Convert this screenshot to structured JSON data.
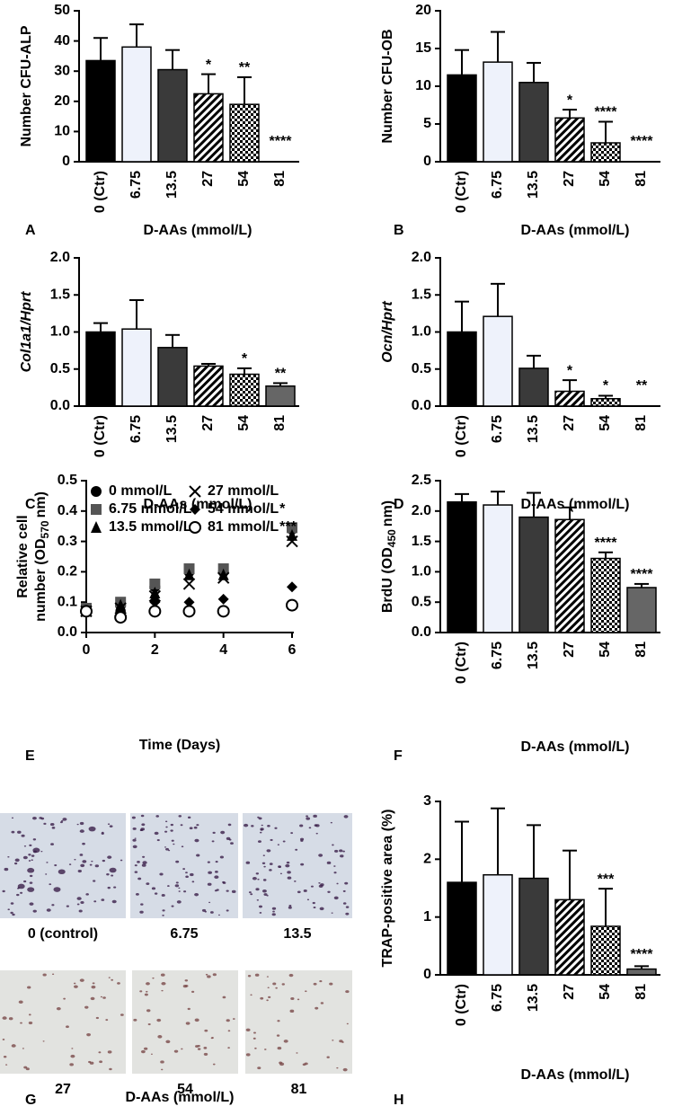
{
  "chart_data": [
    {
      "panel": "A",
      "type": "bar",
      "ylabel": "Number CFU-ALP",
      "xlabel": "D-AAs (mmol/L)",
      "categories": [
        "0 (Ctr)",
        "6.75",
        "13.5",
        "27",
        "54",
        "81"
      ],
      "values": [
        33.5,
        38,
        30.5,
        22.5,
        19,
        0
      ],
      "errors": [
        7.5,
        7.5,
        6.5,
        6.5,
        9,
        null
      ],
      "annotations": [
        null,
        null,
        null,
        "*",
        "**",
        "****"
      ],
      "fills": [
        "#000000",
        "#eef2fb",
        "#3a3a3a",
        "hatch",
        "check",
        "#666666"
      ],
      "ylim": [
        0,
        50
      ],
      "yticks": [
        0,
        10,
        20,
        30,
        40,
        50
      ]
    },
    {
      "panel": "B",
      "type": "bar",
      "ylabel": "Number CFU-OB",
      "xlabel": "D-AAs (mmol/L)",
      "categories": [
        "0 (Ctr)",
        "6.75",
        "13.5",
        "27",
        "54",
        "81"
      ],
      "values": [
        11.5,
        13.2,
        10.5,
        5.8,
        2.5,
        0
      ],
      "errors": [
        3.3,
        4,
        2.6,
        1.1,
        2.8,
        null
      ],
      "annotations": [
        null,
        null,
        null,
        "*",
        "****",
        "****"
      ],
      "fills": [
        "#000000",
        "#eef2fb",
        "#3a3a3a",
        "hatch",
        "check",
        "#666666"
      ],
      "ylim": [
        0,
        20
      ],
      "yticks": [
        0,
        5,
        10,
        15,
        20
      ]
    },
    {
      "panel": "C",
      "type": "bar",
      "ylabel": "Col1a1/Hprt",
      "ylabel_italic": true,
      "xlabel": "D-AAs (mmol/L)",
      "categories": [
        "0 (Ctr)",
        "6.75",
        "13.5",
        "27",
        "54",
        "81"
      ],
      "values": [
        1.0,
        1.04,
        0.79,
        0.54,
        0.43,
        0.27
      ],
      "errors": [
        0.12,
        0.39,
        0.17,
        0.03,
        0.08,
        0.04
      ],
      "annotations": [
        null,
        null,
        null,
        null,
        "*",
        "**"
      ],
      "fills": [
        "#000000",
        "#eef2fb",
        "#3a3a3a",
        "hatch",
        "check",
        "#666666"
      ],
      "ylim": [
        0,
        2
      ],
      "yticks": [
        {
          "value": 0,
          "label": "0.0"
        },
        {
          "value": 0.5,
          "label": "0.5"
        },
        {
          "value": 1,
          "label": "1.0"
        },
        {
          "value": 1.5,
          "label": "1.5"
        },
        {
          "value": 2,
          "label": "2.0"
        }
      ]
    },
    {
      "panel": "D",
      "type": "bar",
      "ylabel": "Ocn/Hprt",
      "ylabel_italic": true,
      "xlabel": "D-AAs (mmol/L)",
      "categories": [
        "0 (Ctr)",
        "6.75",
        "13.5",
        "27",
        "54",
        "81"
      ],
      "values": [
        1.0,
        1.21,
        0.51,
        0.2,
        0.1,
        0
      ],
      "errors": [
        0.41,
        0.44,
        0.17,
        0.15,
        0.04,
        null
      ],
      "annotations": [
        null,
        null,
        null,
        "*",
        "*",
        "**"
      ],
      "fills": [
        "#000000",
        "#eef2fb",
        "#3a3a3a",
        "hatch",
        "check",
        "#666666"
      ],
      "ylim": [
        0,
        2
      ],
      "yticks": [
        {
          "value": 0,
          "label": "0.0"
        },
        {
          "value": 0.5,
          "label": "0.5"
        },
        {
          "value": 1,
          "label": "1.0"
        },
        {
          "value": 1.5,
          "label": "1.5"
        },
        {
          "value": 2,
          "label": "2.0"
        }
      ]
    },
    {
      "panel": "E",
      "type": "scatter",
      "ylabel": [
        "Relative cell",
        "number (OD",
        "570",
        "nm)"
      ],
      "xlabel": "Time (Days)",
      "x": [
        0,
        1,
        2,
        3,
        4,
        6
      ],
      "series": [
        {
          "name": "0 mmol/L",
          "marker": "circle",
          "color": "#000000",
          "values": [
            0.07,
            0.09,
            0.15,
            0.2,
            0.2,
            0.34
          ]
        },
        {
          "name": "6.75 mmol/L",
          "marker": "square",
          "color": "#555555",
          "values": [
            0.08,
            0.1,
            0.16,
            0.21,
            0.21,
            0.345
          ]
        },
        {
          "name": "13.5 mmol/L",
          "marker": "triangle",
          "color": "#000000",
          "values": [
            0.07,
            0.09,
            0.13,
            0.19,
            0.19,
            0.32
          ]
        },
        {
          "name": "27 mmol/L",
          "marker": "x",
          "color": "#000000",
          "values": [
            0.07,
            0.08,
            0.12,
            0.16,
            0.18,
            0.3
          ]
        },
        {
          "name": "54 mmol/L",
          "annotation": "*",
          "marker": "diamond",
          "color": "#000000",
          "values": [
            0.07,
            0.07,
            0.1,
            0.1,
            0.11,
            0.15
          ]
        },
        {
          "name": "81 mmol/L",
          "annotation": "***",
          "marker": "open-circle",
          "color": "#000000",
          "values": [
            0.07,
            0.05,
            0.07,
            0.07,
            0.07,
            0.09
          ]
        }
      ],
      "xlim": [
        0,
        6
      ],
      "xticks": [
        0,
        2,
        4,
        6
      ],
      "ylim": [
        0,
        0.5
      ],
      "yticks": [
        {
          "value": 0,
          "label": "0.0"
        },
        {
          "value": 0.1,
          "label": "0.1"
        },
        {
          "value": 0.2,
          "label": "0.2"
        },
        {
          "value": 0.3,
          "label": "0.3"
        },
        {
          "value": 0.4,
          "label": "0.4"
        },
        {
          "value": 0.5,
          "label": "0.5"
        }
      ]
    },
    {
      "panel": "F",
      "type": "bar",
      "ylabel": [
        "BrdU (OD",
        "450",
        "nm)"
      ],
      "xlabel": "D-AAs (mmol/L)",
      "categories": [
        "0 (Ctr)",
        "6.75",
        "13.5",
        "27",
        "54",
        "81"
      ],
      "values": [
        2.15,
        2.1,
        1.9,
        1.86,
        1.22,
        0.74
      ],
      "errors": [
        0.13,
        0.22,
        0.4,
        0.2,
        0.1,
        0.06
      ],
      "annotations": [
        null,
        null,
        null,
        null,
        "****",
        "****"
      ],
      "fills": [
        "#000000",
        "#eef2fb",
        "#3a3a3a",
        "hatch",
        "check",
        "#666666"
      ],
      "ylim": [
        0,
        2.5
      ],
      "yticks": [
        {
          "value": 0,
          "label": "0.0"
        },
        {
          "value": 0.5,
          "label": "0.5"
        },
        {
          "value": 1,
          "label": "1.0"
        },
        {
          "value": 1.5,
          "label": "1.5"
        },
        {
          "value": 2,
          "label": "2.0"
        },
        {
          "value": 2.5,
          "label": "2.5"
        }
      ]
    },
    {
      "panel": "G",
      "type": "image-grid",
      "xlabel": "D-AAs (mmol/L)",
      "captions": [
        "0 (control)",
        "6.75",
        "13.5",
        "27",
        "54",
        "81"
      ]
    },
    {
      "panel": "H",
      "type": "bar",
      "ylabel": "TRAP-positive area (%)",
      "xlabel": "D-AAs (mmol/L)",
      "categories": [
        "0 (Ctr)",
        "6.75",
        "13.5",
        "27",
        "54",
        "81"
      ],
      "values": [
        1.6,
        1.73,
        1.67,
        1.3,
        0.84,
        0.1
      ],
      "errors": [
        1.05,
        1.15,
        0.92,
        0.85,
        0.65,
        0.05
      ],
      "annotations": [
        null,
        null,
        null,
        null,
        "***",
        "****"
      ],
      "fills": [
        "#000000",
        "#eef2fb",
        "#3a3a3a",
        "hatch",
        "check",
        "#666666"
      ],
      "ylim": [
        0,
        3
      ],
      "yticks": [
        0,
        1,
        2,
        3
      ]
    }
  ]
}
